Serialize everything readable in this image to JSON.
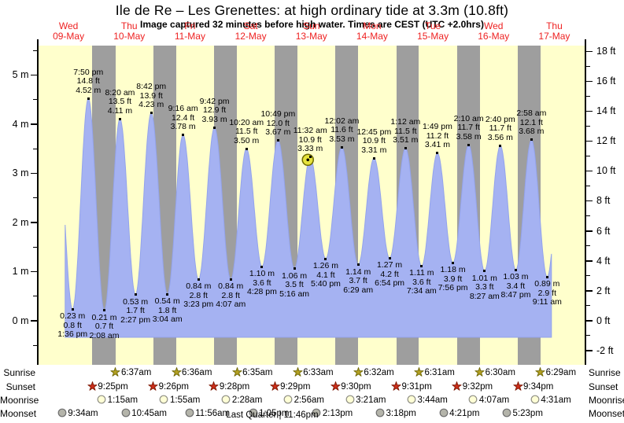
{
  "header": {
    "title": "Ile de Re – Les Grenettes: at high  ordinary tide at 3.3m (10.8ft)",
    "subtitle": "Image captured 32 minutes before high water. Times are CEST (UTC +2.0hrs)"
  },
  "colors": {
    "plot_bg": "#ffffcc",
    "night_band": "#9e9e9e",
    "tide_fill": "#a5b2f2",
    "tide_edge": "#93a3ec",
    "day_label": "#ee2222",
    "axis": "#000000",
    "current_marker_fill": "#e6e23c",
    "current_marker_edge": "#6e6a00",
    "sunrise_star_fill": "#b3a023",
    "sunrise_star_edge": "#6b6400",
    "sunset_star_fill": "#cc2e1a",
    "sunset_star_edge": "#7a1500",
    "moonrise_fill": "#ffffd6",
    "moonrise_edge": "#8f8f85",
    "moonset_fill": "#b4b4aa",
    "moonset_edge": "#6f6f6f"
  },
  "chart_data": {
    "type": "area",
    "title": "Tide height curve",
    "days": [
      {
        "dow": "Wed",
        "date": "09-May"
      },
      {
        "dow": "Thu",
        "date": "10-May"
      },
      {
        "dow": "Fri",
        "date": "11-May"
      },
      {
        "dow": "Sat",
        "date": "12-May"
      },
      {
        "dow": "Sun",
        "date": "13-May"
      },
      {
        "dow": "Mon",
        "date": "14-May"
      },
      {
        "dow": "Tue",
        "date": "15-May"
      },
      {
        "dow": "Wed",
        "date": "16-May"
      },
      {
        "dow": "Thu",
        "date": "17-May"
      }
    ],
    "y_axis_left": {
      "unit": "m",
      "tick_labels": [
        "0 m",
        "1 m",
        "2 m",
        "3 m",
        "4 m",
        "5 m"
      ]
    },
    "y_axis_right": {
      "unit": "ft",
      "tick_labels": [
        "-2 ft",
        "0 ft",
        "2 ft",
        "4 ft",
        "6 ft",
        "8 ft",
        "10 ft",
        "12 ft",
        "14 ft",
        "16 ft",
        "18 ft"
      ]
    },
    "events": [
      {
        "type": "low",
        "day": 0,
        "time": "1:36 pm",
        "m": 0.23,
        "ft": 0.8
      },
      {
        "type": "high",
        "day": 0,
        "time": "7:50 pm",
        "m": 4.52,
        "ft": 14.8
      },
      {
        "type": "low",
        "day": 1,
        "time": "2:08 am",
        "m": 0.21,
        "ft": 0.7
      },
      {
        "type": "high",
        "day": 1,
        "time": "8:20 am",
        "m": 4.11,
        "ft": 13.5
      },
      {
        "type": "low",
        "day": 1,
        "time": "2:27 pm",
        "m": 0.53,
        "ft": 1.7
      },
      {
        "type": "high",
        "day": 1,
        "time": "8:42 pm",
        "m": 4.23,
        "ft": 13.9
      },
      {
        "type": "low",
        "day": 2,
        "time": "3:04 am",
        "m": 0.54,
        "ft": 1.8
      },
      {
        "type": "high",
        "day": 2,
        "time": "9:16 am",
        "m": 3.78,
        "ft": 12.4
      },
      {
        "type": "low",
        "day": 2,
        "time": "3:23 pm",
        "m": 0.84,
        "ft": 2.8
      },
      {
        "type": "high",
        "day": 2,
        "time": "9:42 pm",
        "m": 3.93,
        "ft": 12.9
      },
      {
        "type": "low",
        "day": 3,
        "time": "4:07 am",
        "m": 0.84,
        "ft": 2.8
      },
      {
        "type": "high",
        "day": 3,
        "time": "10:20 am",
        "m": 3.5,
        "ft": 11.5
      },
      {
        "type": "low",
        "day": 3,
        "time": "4:28 pm",
        "m": 1.1,
        "ft": 3.6
      },
      {
        "type": "high",
        "day": 3,
        "time": "10:49 pm",
        "m": 3.67,
        "ft": 12.0
      },
      {
        "type": "low",
        "day": 4,
        "time": "5:16 am",
        "m": 1.06,
        "ft": 3.5
      },
      {
        "type": "high",
        "day": 4,
        "time": "11:32 am",
        "m": 3.33,
        "ft": 10.9,
        "current": true
      },
      {
        "type": "low",
        "day": 4,
        "time": "5:40 pm",
        "m": 1.26,
        "ft": 4.1
      },
      {
        "type": "high",
        "day": 5,
        "time": "12:02 am",
        "m": 3.53,
        "ft": 11.6
      },
      {
        "type": "low",
        "day": 5,
        "time": "6:29 am",
        "m": 1.14,
        "ft": 3.7
      },
      {
        "type": "high",
        "day": 5,
        "time": "12:45 pm",
        "m": 3.31,
        "ft": 10.9
      },
      {
        "type": "low",
        "day": 5,
        "time": "6:54 pm",
        "m": 1.27,
        "ft": 4.2
      },
      {
        "type": "high",
        "day": 6,
        "time": "1:12 am",
        "m": 3.51,
        "ft": 11.5
      },
      {
        "type": "low",
        "day": 6,
        "time": "7:34 am",
        "m": 1.11,
        "ft": 3.6
      },
      {
        "type": "high",
        "day": 6,
        "time": "1:49 pm",
        "m": 3.41,
        "ft": 11.2
      },
      {
        "type": "low",
        "day": 6,
        "time": "7:56 pm",
        "m": 1.18,
        "ft": 3.9
      },
      {
        "type": "high",
        "day": 7,
        "time": "2:10 am",
        "m": 3.58,
        "ft": 11.7
      },
      {
        "type": "low",
        "day": 7,
        "time": "8:27 am",
        "m": 1.01,
        "ft": 3.3
      },
      {
        "type": "high",
        "day": 7,
        "time": "2:40 pm",
        "m": 3.56,
        "ft": 11.7
      },
      {
        "type": "low",
        "day": 7,
        "time": "8:47 pm",
        "m": 1.03,
        "ft": 3.4
      },
      {
        "type": "high",
        "day": 8,
        "time": "2:58 am",
        "m": 3.68,
        "ft": 12.1
      },
      {
        "type": "low",
        "day": 8,
        "time": "9:11 am",
        "m": 0.89,
        "ft": 2.9
      }
    ]
  },
  "astro": {
    "rows": [
      {
        "id": "sunrise",
        "label": "Sunrise",
        "icon": "sunrise-star-icon",
        "entries": [
          {
            "day": 1,
            "time": "6:37am"
          },
          {
            "day": 2,
            "time": "6:36am"
          },
          {
            "day": 3,
            "time": "6:35am"
          },
          {
            "day": 4,
            "time": "6:33am"
          },
          {
            "day": 5,
            "time": "6:32am"
          },
          {
            "day": 6,
            "time": "6:31am"
          },
          {
            "day": 7,
            "time": "6:30am"
          },
          {
            "day": 8,
            "time": "6:29am"
          }
        ]
      },
      {
        "id": "sunset",
        "label": "Sunset",
        "icon": "sunset-star-icon",
        "entries": [
          {
            "day": 0,
            "time": "9:25pm"
          },
          {
            "day": 1,
            "time": "9:26pm"
          },
          {
            "day": 2,
            "time": "9:28pm"
          },
          {
            "day": 3,
            "time": "9:29pm"
          },
          {
            "day": 4,
            "time": "9:30pm"
          },
          {
            "day": 5,
            "time": "9:31pm"
          },
          {
            "day": 6,
            "time": "9:32pm"
          },
          {
            "day": 7,
            "time": "9:34pm"
          }
        ]
      },
      {
        "id": "moonrise",
        "label": "Moonrise",
        "icon": "moonrise-icon",
        "entries": [
          {
            "day": 1,
            "time": "1:15am"
          },
          {
            "day": 2,
            "time": "1:55am"
          },
          {
            "day": 3,
            "time": "2:28am"
          },
          {
            "day": 4,
            "time": "2:56am"
          },
          {
            "day": 5,
            "time": "3:21am"
          },
          {
            "day": 6,
            "time": "3:44am"
          },
          {
            "day": 7,
            "time": "4:07am"
          },
          {
            "day": 8,
            "time": "4:31am"
          }
        ]
      },
      {
        "id": "moonset",
        "label": "Moonset",
        "icon": "moonset-icon",
        "entries": [
          {
            "day": 0,
            "time": "9:34am"
          },
          {
            "day": 1,
            "time": "10:45am"
          },
          {
            "day": 2,
            "time": "11:56am"
          },
          {
            "day": 3,
            "time": "1:05pm"
          },
          {
            "day": 4,
            "time": "2:13pm"
          },
          {
            "day": 5,
            "time": "3:18pm"
          },
          {
            "day": 6,
            "time": "4:21pm"
          },
          {
            "day": 7,
            "time": "5:23pm"
          }
        ]
      }
    ],
    "footer": "Last Quarter | 11:46pm"
  }
}
